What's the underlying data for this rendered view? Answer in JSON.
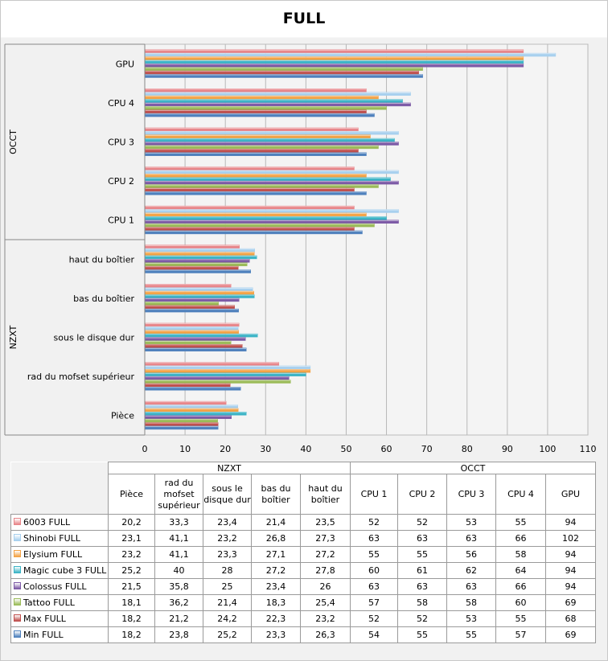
{
  "chart_data": {
    "type": "bar",
    "orientation": "horizontal",
    "title": "FULL",
    "groups": [
      {
        "name": "NZXT",
        "categories": [
          "Pièce",
          "rad du mofset supérieur",
          "sous le disque dur",
          "bas du boîtier",
          "haut du boîtier"
        ]
      },
      {
        "name": "OCCT",
        "categories": [
          "CPU 1",
          "CPU 2",
          "CPU 3",
          "CPU 4",
          "GPU"
        ]
      }
    ],
    "table_headers": [
      "Pièce",
      "rad du mofset supérieur",
      "sous le disque dur",
      "bas du boîtier",
      "haut du boîtier",
      "CPU 1",
      "CPU 2",
      "CPU 3",
      "CPU 4",
      "GPU"
    ],
    "categories": [
      "Pièce",
      "rad du mofset supérieur",
      "sous le disque dur",
      "bas du boîtier",
      "haut du boîtier",
      "CPU 1",
      "CPU 2",
      "CPU 3",
      "CPU 4",
      "GPU"
    ],
    "xlim": [
      0,
      110
    ],
    "xticks": [
      0,
      10,
      20,
      30,
      40,
      50,
      60,
      70,
      80,
      90,
      100,
      110
    ],
    "grid": true,
    "legend": "table-bottom",
    "series": [
      {
        "name": "6003 FULL",
        "color": "#e8868a",
        "values": [
          20.2,
          33.3,
          23.4,
          21.4,
          23.5,
          52,
          52,
          53,
          55,
          94
        ],
        "labels": [
          "20,2",
          "33,3",
          "23,4",
          "21,4",
          "23,5",
          "52",
          "52",
          "53",
          "55",
          "94"
        ]
      },
      {
        "name": "Shinobi FULL",
        "color": "#a8d0ee",
        "values": [
          23.1,
          41.1,
          23.2,
          26.8,
          27.3,
          63,
          63,
          63,
          66,
          102
        ],
        "labels": [
          "23,1",
          "41,1",
          "23,2",
          "26,8",
          "27,3",
          "63",
          "63",
          "63",
          "66",
          "102"
        ]
      },
      {
        "name": "Elysium FULL",
        "color": "#f4a346",
        "values": [
          23.2,
          41.1,
          23.3,
          27.1,
          27.2,
          55,
          55,
          56,
          58,
          94
        ],
        "labels": [
          "23,2",
          "41,1",
          "23,3",
          "27,1",
          "27,2",
          "55",
          "55",
          "56",
          "58",
          "94"
        ]
      },
      {
        "name": "Magic cube 3 FULL",
        "color": "#3cb4c6",
        "values": [
          25.2,
          40,
          28,
          27.2,
          27.8,
          60,
          61,
          62,
          64,
          94
        ],
        "labels": [
          "25,2",
          "40",
          "28",
          "27,2",
          "27,8",
          "60",
          "61",
          "62",
          "64",
          "94"
        ]
      },
      {
        "name": "Colossus FULL",
        "color": "#7d5aa6",
        "values": [
          21.5,
          35.8,
          25,
          23.4,
          26,
          63,
          63,
          63,
          66,
          94
        ],
        "labels": [
          "21,5",
          "35,8",
          "25",
          "23,4",
          "26",
          "63",
          "63",
          "63",
          "66",
          "94"
        ]
      },
      {
        "name": "Tattoo FULL",
        "color": "#9bbb59",
        "values": [
          18.1,
          36.2,
          21.4,
          18.3,
          25.4,
          57,
          58,
          58,
          60,
          69
        ],
        "labels": [
          "18,1",
          "36,2",
          "21,4",
          "18,3",
          "25,4",
          "57",
          "58",
          "58",
          "60",
          "69"
        ]
      },
      {
        "name": "Max FULL",
        "color": "#c0504d",
        "values": [
          18.2,
          21.2,
          24.2,
          22.3,
          23.2,
          52,
          52,
          53,
          55,
          68
        ],
        "labels": [
          "18,2",
          "21,2",
          "24,2",
          "22,3",
          "23,2",
          "52",
          "52",
          "53",
          "55",
          "68"
        ]
      },
      {
        "name": "Min FULL",
        "color": "#4f81bd",
        "values": [
          18.2,
          23.8,
          25.2,
          23.3,
          26.3,
          54,
          55,
          55,
          57,
          69
        ],
        "labels": [
          "18,2",
          "23,8",
          "25,2",
          "23,3",
          "26,3",
          "54",
          "55",
          "55",
          "57",
          "69"
        ]
      }
    ]
  }
}
